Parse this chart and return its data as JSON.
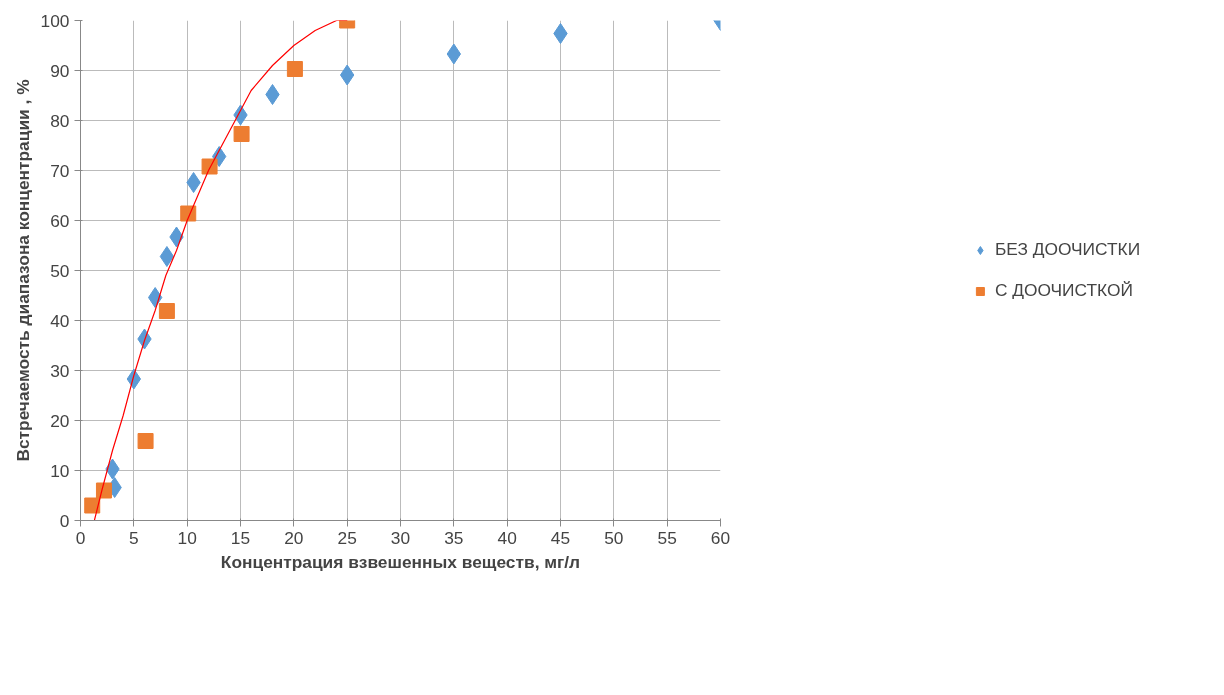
{
  "chart_data": {
    "type": "scatter",
    "xlabel": "Концентрация взвешенных веществ, мг/л",
    "ylabel": "Встречаемость диапазона концентрации , %",
    "xlim": [
      0,
      60
    ],
    "xticks": [
      0,
      5,
      10,
      15,
      20,
      25,
      30,
      35,
      40,
      45,
      50,
      55,
      60
    ],
    "ylim": [
      0,
      100
    ],
    "yticks": [
      0,
      10,
      20,
      30,
      40,
      50,
      60,
      70,
      80,
      90,
      100
    ],
    "grid": true,
    "legend": "right",
    "series": [
      {
        "name": "БЕЗ ДООЧИСТКИ",
        "color": "#5b9bd5",
        "marker": "diamond",
        "x": [
          3,
          3.2,
          5,
          6,
          7,
          8.1,
          9,
          10.6,
          13,
          15,
          18,
          25,
          35,
          45,
          60
        ],
        "values": [
          10.3,
          6.6,
          28.3,
          36.3,
          44.6,
          52.8,
          56.7,
          67.6,
          72.8,
          81.1,
          85.2,
          89.1,
          93.3,
          97.4,
          100
        ]
      },
      {
        "name": "С ДООЧИСТКОЙ",
        "color": "#ed7d31",
        "marker": "square",
        "x": [
          1.1,
          2.2,
          6.1,
          8.1,
          10.1,
          12.1,
          15.1,
          20.1,
          25
        ],
        "values": [
          3,
          6,
          15.9,
          41.9,
          61.4,
          70.8,
          77.3,
          90.3,
          100
        ]
      },
      {
        "type": "line",
        "color": "#ff0000",
        "marker": "none",
        "x": [
          1.3,
          2,
          3,
          4,
          5,
          6,
          7,
          8,
          9,
          10,
          12,
          14,
          16,
          18,
          20,
          22,
          24,
          25
        ],
        "values": [
          0,
          6,
          14,
          21,
          29,
          36,
          42,
          49,
          54,
          60,
          70,
          78,
          86,
          91,
          95,
          98,
          100,
          100
        ]
      }
    ]
  }
}
